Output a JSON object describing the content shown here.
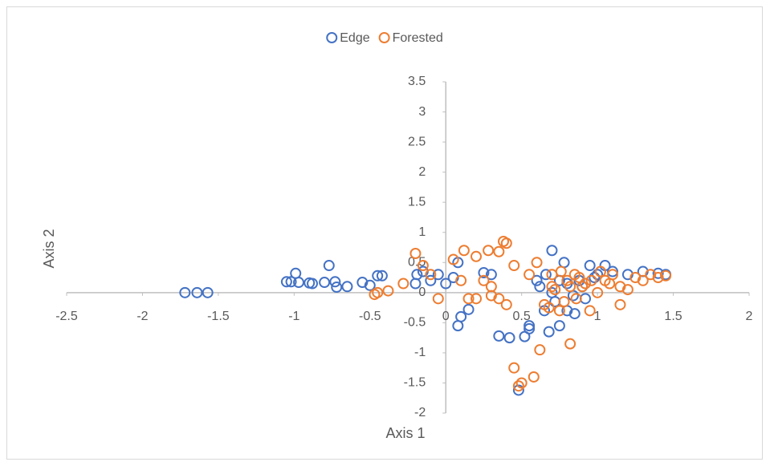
{
  "chart_data": {
    "type": "scatter",
    "xlabel": "Axis 1",
    "ylabel": "Axis 2",
    "xlim": [
      -2.5,
      2
    ],
    "ylim": [
      -2,
      3.5
    ],
    "xticks": [
      -2.5,
      -2,
      -1.5,
      -1,
      -0.5,
      0,
      0.5,
      1,
      1.5,
      2
    ],
    "yticks": [
      -2,
      -1.5,
      -1,
      -0.5,
      0,
      0.5,
      1,
      1.5,
      2,
      2.5,
      3,
      3.5
    ],
    "legend": "top",
    "series": [
      {
        "name": "Edge",
        "color": "#4472c4",
        "x": [
          -1.72,
          -1.64,
          -1.57,
          -1.05,
          -1.02,
          -0.99,
          -0.97,
          -0.9,
          -0.88,
          -0.8,
          -0.77,
          -0.73,
          -0.72,
          -0.65,
          -0.55,
          -0.5,
          -0.45,
          -0.42,
          -0.2,
          -0.19,
          -0.15,
          -0.1,
          -0.05,
          0,
          0.05,
          0.08,
          0.1,
          0.08,
          0.15,
          0.25,
          0.3,
          0.35,
          0.42,
          0.48,
          0.52,
          0.55,
          0.55,
          0.6,
          0.65,
          0.68,
          0.7,
          0.75,
          0.78,
          0.8,
          0.85,
          0.9,
          0.95,
          1.0,
          1.05,
          1.1,
          1.2,
          1.3,
          1.4,
          1.45,
          0.62,
          0.7,
          0.72,
          0.8,
          0.88,
          0.92,
          0.98,
          0.66,
          0.75,
          0.84
        ],
        "y": [
          0,
          0,
          0,
          0.18,
          0.18,
          0.32,
          0.17,
          0.16,
          0.15,
          0.17,
          0.45,
          0.18,
          0.09,
          0.1,
          0.17,
          0.12,
          0.28,
          0.28,
          0.15,
          0.3,
          0.35,
          0.2,
          0.3,
          0.15,
          0.25,
          0.5,
          -0.4,
          -0.55,
          -0.28,
          0.33,
          0.3,
          -0.72,
          -0.75,
          -1.62,
          -0.73,
          -0.55,
          -0.6,
          0.2,
          -0.3,
          -0.65,
          0.7,
          -0.55,
          0.5,
          -0.3,
          -0.35,
          0.1,
          0.45,
          0.3,
          0.45,
          0.35,
          0.3,
          0.35,
          0.32,
          0.3,
          0.1,
          0.0,
          -0.15,
          0.15,
          0.2,
          -0.1,
          0.25,
          0.3,
          0.2,
          -0.05
        ]
      },
      {
        "name": "Forested",
        "color": "#ed7d31",
        "x": [
          -0.2,
          -0.15,
          -0.1,
          -0.05,
          0.05,
          0.1,
          0.12,
          0.2,
          0.25,
          0.28,
          0.3,
          0.35,
          0.38,
          0.4,
          0.45,
          0.35,
          0.4,
          0.45,
          0.48,
          0.5,
          0.58,
          0.62,
          0.82,
          -0.45,
          -0.47,
          -0.38,
          -0.28,
          0.6,
          0.55,
          0.65,
          0.7,
          0.75,
          0.8,
          0.85,
          0.9,
          0.95,
          1.0,
          1.05,
          1.1,
          1.15,
          1.15,
          1.2,
          1.25,
          1.3,
          1.35,
          1.4,
          1.45,
          0.3,
          0.2,
          0.15,
          0.68,
          0.72,
          0.78,
          0.82,
          0.88,
          0.92,
          0.7,
          0.76,
          0.86,
          0.96,
          1.02,
          1.08
        ],
        "y": [
          0.65,
          0.45,
          0.3,
          -0.1,
          0.55,
          0.2,
          0.7,
          0.6,
          0.2,
          0.7,
          0.1,
          0.68,
          0.85,
          0.82,
          0.45,
          -0.1,
          -0.2,
          -1.25,
          -1.55,
          -1.5,
          -1.4,
          -0.95,
          -0.85,
          0,
          -0.03,
          0.03,
          0.15,
          0.5,
          0.3,
          -0.2,
          0.1,
          -0.3,
          0.2,
          0.3,
          0.1,
          -0.3,
          0.0,
          0.2,
          0.3,
          0.1,
          -0.2,
          0.05,
          0.25,
          0.2,
          0.3,
          0.25,
          0.28,
          -0.05,
          -0.1,
          -0.1,
          -0.25,
          0.05,
          -0.15,
          0.1,
          0.25,
          0.15,
          0.3,
          0.35,
          -0.1,
          0.2,
          0.35,
          0.15
        ]
      }
    ]
  }
}
